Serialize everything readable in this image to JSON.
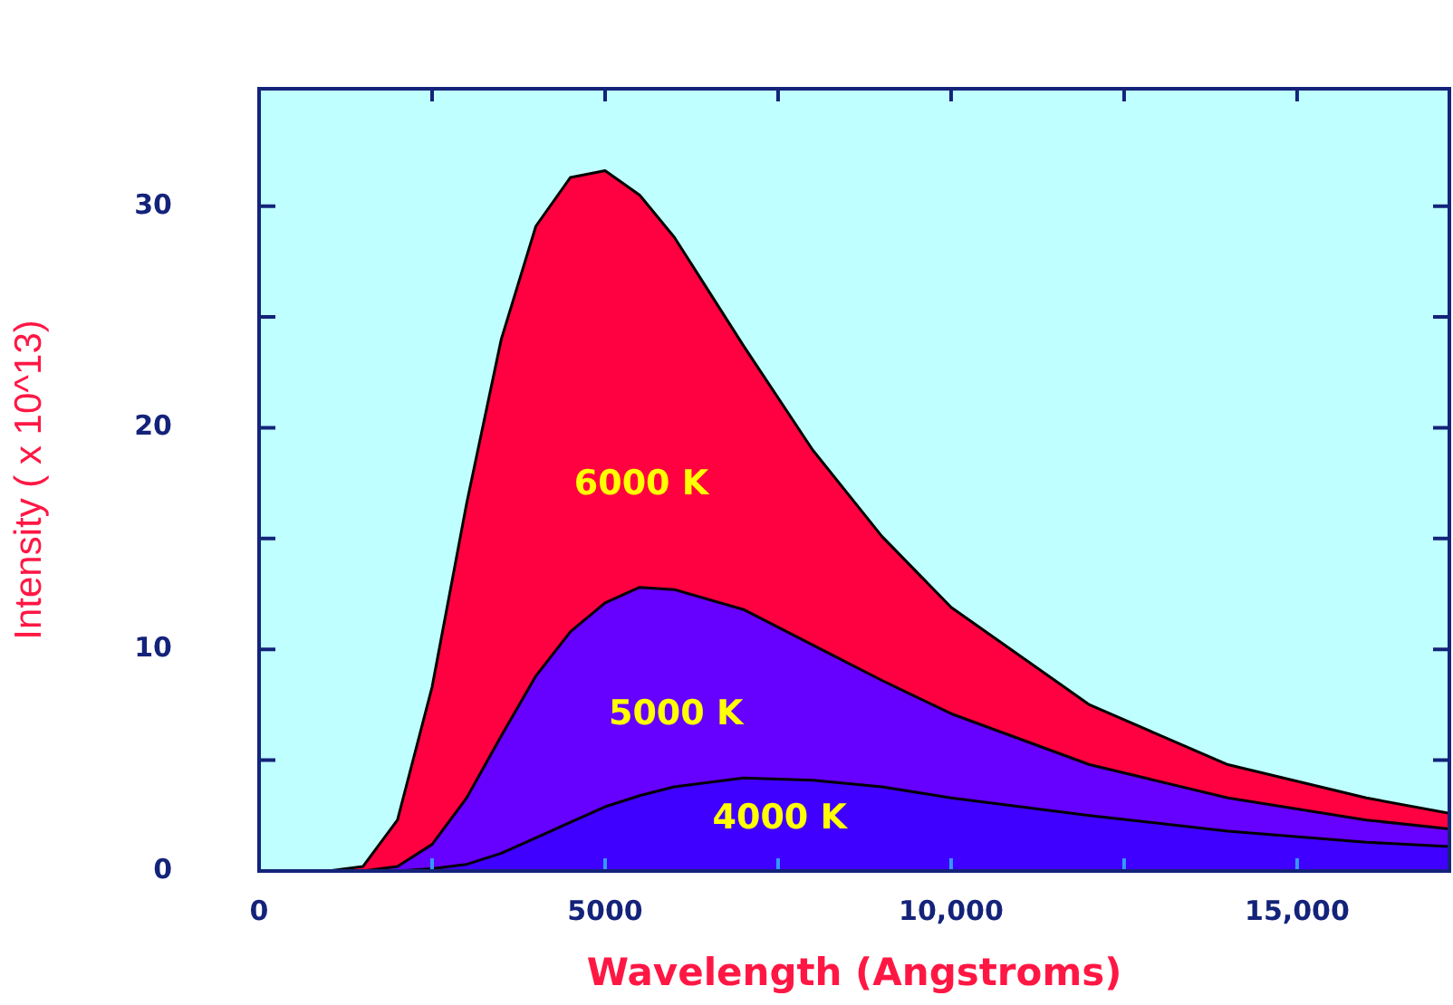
{
  "chart_data": {
    "type": "area",
    "xlabel": "Wavelength (Angstroms)",
    "ylabel": "Intensity ( x 10^13)",
    "x": [
      1000,
      1500,
      2000,
      2500,
      3000,
      3500,
      4000,
      4500,
      5000,
      5500,
      6000,
      7000,
      8000,
      9000,
      10000,
      12000,
      14000,
      16000,
      17200
    ],
    "xlim": [
      0,
      17200
    ],
    "ylim": [
      0,
      35.3
    ],
    "xticks": [
      0,
      {
        "value": 2500,
        "label": null
      },
      {
        "value": 5000,
        "label": "5000"
      },
      {
        "value": 7500,
        "label": null
      },
      {
        "value": 10000,
        "label": "10,000"
      },
      {
        "value": 12500,
        "label": null
      },
      {
        "value": 15000,
        "label": "15,000"
      }
    ],
    "yticks": [
      0,
      {
        "value": 5,
        "label": null
      },
      10,
      {
        "value": 15,
        "label": null
      },
      20,
      {
        "value": 25,
        "label": null
      },
      30
    ],
    "series": [
      {
        "name": "6000 K",
        "color": "#ff0040",
        "values": [
          0,
          0.2,
          2.3,
          8.3,
          16.6,
          24.0,
          29.1,
          31.3,
          31.6,
          30.5,
          28.6,
          23.7,
          19.0,
          15.1,
          11.9,
          7.5,
          4.8,
          3.3,
          2.6
        ]
      },
      {
        "name": "5000 K",
        "color": "#6600ff",
        "values": [
          0,
          0,
          0.2,
          1.2,
          3.3,
          6.1,
          8.8,
          10.8,
          12.1,
          12.8,
          12.7,
          11.8,
          10.2,
          8.6,
          7.1,
          4.8,
          3.3,
          2.3,
          1.9
        ]
      },
      {
        "name": "4000 K",
        "color": "#3f00ff",
        "values": [
          0,
          0,
          0,
          0.1,
          0.3,
          0.8,
          1.5,
          2.2,
          2.9,
          3.4,
          3.8,
          4.2,
          4.1,
          3.8,
          3.3,
          2.5,
          1.8,
          1.3,
          1.1
        ]
      }
    ]
  }
}
